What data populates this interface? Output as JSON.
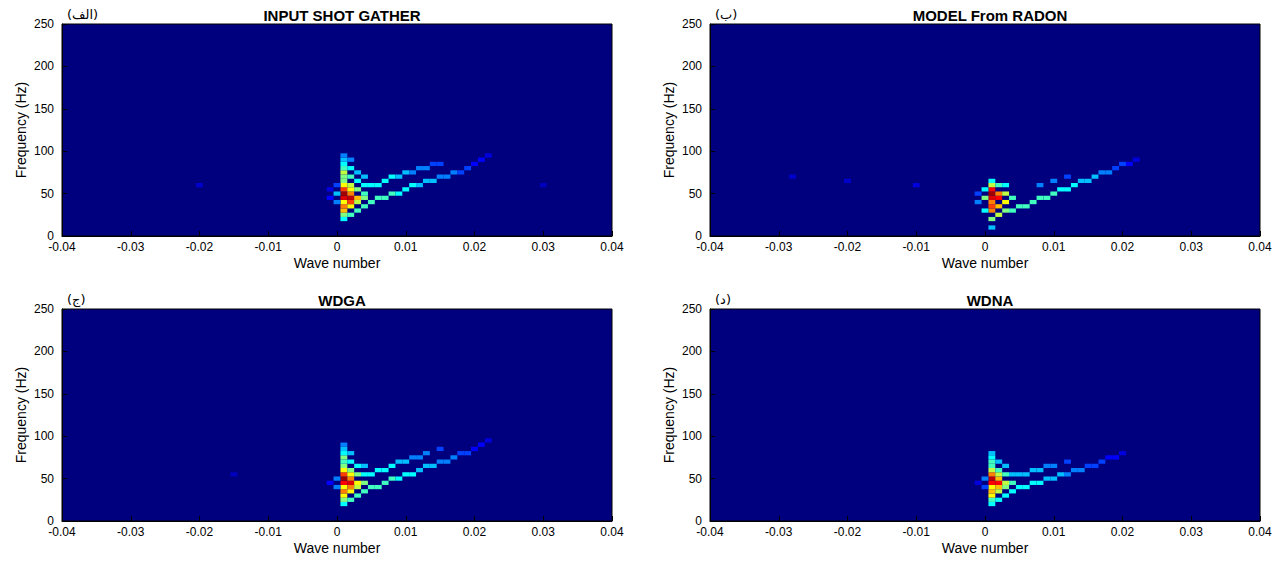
{
  "chart_data": [
    {
      "type": "heatmap",
      "panel_label": "(الف)",
      "title": "INPUT SHOT GATHER",
      "x_label": "Wave number",
      "y_label": "Frequency (Hz)",
      "xlim": [
        -0.04,
        0.04
      ],
      "xticks": [
        -0.04,
        -0.03,
        -0.02,
        -0.01,
        0,
        0.01,
        0.02,
        0.03,
        0.04
      ],
      "ylim": [
        0,
        250
      ],
      "yticks": [
        0,
        50,
        100,
        150,
        200,
        250
      ],
      "cell_size": [
        0.001,
        5
      ],
      "color_range": [
        0,
        1
      ],
      "cells": [
        [
          0.001,
          20,
          0.4
        ],
        [
          0.001,
          25,
          0.5
        ],
        [
          0.001,
          30,
          0.65
        ],
        [
          0.001,
          35,
          0.7
        ],
        [
          0.001,
          40,
          0.6
        ],
        [
          0.001,
          45,
          0.85
        ],
        [
          0.001,
          50,
          0.95
        ],
        [
          0.001,
          55,
          0.75
        ],
        [
          0.001,
          60,
          0.6
        ],
        [
          0.001,
          65,
          0.5
        ],
        [
          0.001,
          70,
          0.5
        ],
        [
          0.001,
          75,
          0.55
        ],
        [
          0.001,
          80,
          0.45
        ],
        [
          0.001,
          85,
          0.4
        ],
        [
          0.001,
          90,
          0.35
        ],
        [
          0.001,
          95,
          0.3
        ],
        [
          0.002,
          25,
          0.45
        ],
        [
          0.002,
          35,
          0.6
        ],
        [
          0.002,
          40,
          0.75
        ],
        [
          0.002,
          45,
          0.9
        ],
        [
          0.002,
          50,
          0.7
        ],
        [
          0.002,
          55,
          0.6
        ],
        [
          0.002,
          60,
          0.55
        ],
        [
          0.002,
          70,
          0.45
        ],
        [
          0.002,
          80,
          0.4
        ],
        [
          0.002,
          90,
          0.3
        ],
        [
          0.003,
          30,
          0.45
        ],
        [
          0.003,
          40,
          0.55
        ],
        [
          0.003,
          45,
          0.65
        ],
        [
          0.003,
          55,
          0.5
        ],
        [
          0.003,
          65,
          0.4
        ],
        [
          0.003,
          75,
          0.35
        ],
        [
          0.004,
          35,
          0.45
        ],
        [
          0.004,
          45,
          0.5
        ],
        [
          0.004,
          50,
          0.45
        ],
        [
          0.004,
          60,
          0.4
        ],
        [
          0.004,
          70,
          0.35
        ],
        [
          0.005,
          40,
          0.45
        ],
        [
          0.005,
          60,
          0.4
        ],
        [
          0.006,
          45,
          0.45
        ],
        [
          0.006,
          60,
          0.4
        ],
        [
          0.007,
          45,
          0.45
        ],
        [
          0.007,
          65,
          0.4
        ],
        [
          0.008,
          50,
          0.45
        ],
        [
          0.008,
          70,
          0.4
        ],
        [
          0.009,
          50,
          0.4
        ],
        [
          0.009,
          70,
          0.35
        ],
        [
          0.01,
          55,
          0.4
        ],
        [
          0.01,
          75,
          0.35
        ],
        [
          0.011,
          60,
          0.4
        ],
        [
          0.011,
          75,
          0.3
        ],
        [
          0.012,
          60,
          0.35
        ],
        [
          0.012,
          80,
          0.3
        ],
        [
          0.013,
          65,
          0.35
        ],
        [
          0.013,
          80,
          0.3
        ],
        [
          0.014,
          65,
          0.35
        ],
        [
          0.014,
          85,
          0.25
        ],
        [
          0.015,
          70,
          0.3
        ],
        [
          0.015,
          85,
          0.25
        ],
        [
          0.016,
          70,
          0.3
        ],
        [
          0.017,
          75,
          0.3
        ],
        [
          0.018,
          75,
          0.25
        ],
        [
          0.019,
          80,
          0.25
        ],
        [
          0.02,
          85,
          0.2
        ],
        [
          0.021,
          90,
          0.2
        ],
        [
          0.022,
          95,
          0.15
        ],
        [
          0,
          40,
          0.3
        ],
        [
          0,
          50,
          0.35
        ],
        [
          0,
          60,
          0.25
        ],
        [
          -0.001,
          45,
          0.2
        ],
        [
          -0.001,
          55,
          0.15
        ],
        [
          -0.02,
          60,
          0.12
        ],
        [
          0.03,
          60,
          0.1
        ]
      ]
    },
    {
      "type": "heatmap",
      "panel_label": "(ب)",
      "title": "MODEL From RADON",
      "x_label": "Wave number",
      "y_label": "Frequency (Hz)",
      "xlim": [
        -0.04,
        0.04
      ],
      "xticks": [
        -0.04,
        -0.03,
        -0.02,
        -0.01,
        0,
        0.01,
        0.02,
        0.03,
        0.04
      ],
      "ylim": [
        0,
        250
      ],
      "yticks": [
        0,
        50,
        100,
        150,
        200,
        250
      ],
      "cell_size": [
        0.001,
        5
      ],
      "color_range": [
        0,
        1
      ],
      "cells": [
        [
          0.001,
          10,
          0.35
        ],
        [
          0.001,
          20,
          0.5
        ],
        [
          0.001,
          30,
          0.7
        ],
        [
          0.001,
          35,
          0.75
        ],
        [
          0.001,
          40,
          0.7
        ],
        [
          0.001,
          45,
          0.85
        ],
        [
          0.001,
          50,
          0.95
        ],
        [
          0.001,
          55,
          0.8
        ],
        [
          0.001,
          60,
          0.55
        ],
        [
          0.001,
          65,
          0.4
        ],
        [
          0.002,
          25,
          0.55
        ],
        [
          0.002,
          35,
          0.65
        ],
        [
          0.002,
          45,
          0.8
        ],
        [
          0.002,
          50,
          0.7
        ],
        [
          0.002,
          60,
          0.45
        ],
        [
          0.003,
          30,
          0.5
        ],
        [
          0.003,
          40,
          0.6
        ],
        [
          0.003,
          50,
          0.55
        ],
        [
          0.003,
          60,
          0.4
        ],
        [
          0,
          30,
          0.4
        ],
        [
          0,
          45,
          0.5
        ],
        [
          0,
          55,
          0.4
        ],
        [
          -0.001,
          40,
          0.3
        ],
        [
          -0.001,
          50,
          0.25
        ],
        [
          0.004,
          30,
          0.45
        ],
        [
          0.004,
          45,
          0.45
        ],
        [
          0.005,
          35,
          0.45
        ],
        [
          0.006,
          35,
          0.45
        ],
        [
          0.007,
          40,
          0.45
        ],
        [
          0.008,
          45,
          0.45
        ],
        [
          0.009,
          45,
          0.45
        ],
        [
          0.01,
          50,
          0.45
        ],
        [
          0.011,
          55,
          0.4
        ],
        [
          0.012,
          55,
          0.4
        ],
        [
          0.013,
          60,
          0.4
        ],
        [
          0.014,
          65,
          0.35
        ],
        [
          0.015,
          65,
          0.35
        ],
        [
          0.016,
          70,
          0.35
        ],
        [
          0.017,
          75,
          0.3
        ],
        [
          0.018,
          75,
          0.3
        ],
        [
          0.019,
          80,
          0.25
        ],
        [
          0.02,
          85,
          0.25
        ],
        [
          0.021,
          85,
          0.2
        ],
        [
          0.022,
          90,
          0.15
        ],
        [
          0.008,
          60,
          0.3
        ],
        [
          0.01,
          65,
          0.3
        ],
        [
          0.012,
          70,
          0.25
        ],
        [
          -0.02,
          65,
          0.12
        ],
        [
          -0.028,
          70,
          0.12
        ],
        [
          -0.01,
          60,
          0.15
        ]
      ]
    },
    {
      "type": "heatmap",
      "panel_label": "(ج)",
      "title": "WDGA",
      "x_label": "Wave number",
      "y_label": "Frequency (Hz)",
      "xlim": [
        -0.04,
        0.04
      ],
      "xticks": [
        -0.04,
        -0.03,
        -0.02,
        -0.01,
        0,
        0.01,
        0.02,
        0.03,
        0.04
      ],
      "ylim": [
        0,
        250
      ],
      "yticks": [
        0,
        50,
        100,
        150,
        200,
        250
      ],
      "cell_size": [
        0.001,
        5
      ],
      "color_range": [
        0,
        1
      ],
      "cells": [
        [
          0.001,
          20,
          0.4
        ],
        [
          0.001,
          25,
          0.5
        ],
        [
          0.001,
          30,
          0.6
        ],
        [
          0.001,
          35,
          0.7
        ],
        [
          0.001,
          40,
          0.6
        ],
        [
          0.001,
          45,
          0.8
        ],
        [
          0.001,
          50,
          0.95
        ],
        [
          0.001,
          55,
          0.75
        ],
        [
          0.001,
          60,
          0.6
        ],
        [
          0.001,
          65,
          0.5
        ],
        [
          0.001,
          70,
          0.45
        ],
        [
          0.001,
          75,
          0.5
        ],
        [
          0.001,
          80,
          0.4
        ],
        [
          0.001,
          85,
          0.35
        ],
        [
          0.001,
          90,
          0.3
        ],
        [
          0.002,
          25,
          0.45
        ],
        [
          0.002,
          35,
          0.6
        ],
        [
          0.002,
          40,
          0.7
        ],
        [
          0.002,
          45,
          0.85
        ],
        [
          0.002,
          50,
          0.7
        ],
        [
          0.002,
          55,
          0.6
        ],
        [
          0.002,
          60,
          0.5
        ],
        [
          0.002,
          70,
          0.4
        ],
        [
          0.002,
          80,
          0.35
        ],
        [
          0.003,
          30,
          0.45
        ],
        [
          0.003,
          40,
          0.55
        ],
        [
          0.003,
          45,
          0.6
        ],
        [
          0.003,
          55,
          0.5
        ],
        [
          0.003,
          65,
          0.4
        ],
        [
          0.004,
          35,
          0.45
        ],
        [
          0.004,
          45,
          0.5
        ],
        [
          0.004,
          55,
          0.4
        ],
        [
          0.004,
          65,
          0.35
        ],
        [
          0.005,
          40,
          0.45
        ],
        [
          0.005,
          55,
          0.4
        ],
        [
          0.006,
          40,
          0.45
        ],
        [
          0.006,
          60,
          0.4
        ],
        [
          0.007,
          45,
          0.45
        ],
        [
          0.007,
          60,
          0.4
        ],
        [
          0.008,
          50,
          0.45
        ],
        [
          0.008,
          65,
          0.4
        ],
        [
          0.009,
          50,
          0.4
        ],
        [
          0.009,
          70,
          0.35
        ],
        [
          0.01,
          55,
          0.4
        ],
        [
          0.01,
          70,
          0.35
        ],
        [
          0.011,
          55,
          0.4
        ],
        [
          0.011,
          75,
          0.3
        ],
        [
          0.012,
          60,
          0.35
        ],
        [
          0.012,
          75,
          0.3
        ],
        [
          0.013,
          65,
          0.35
        ],
        [
          0.013,
          80,
          0.3
        ],
        [
          0.014,
          65,
          0.35
        ],
        [
          0.015,
          70,
          0.3
        ],
        [
          0.015,
          85,
          0.25
        ],
        [
          0.016,
          70,
          0.3
        ],
        [
          0.017,
          75,
          0.3
        ],
        [
          0.018,
          80,
          0.25
        ],
        [
          0.019,
          80,
          0.25
        ],
        [
          0.02,
          85,
          0.2
        ],
        [
          0.021,
          90,
          0.2
        ],
        [
          0.022,
          95,
          0.15
        ],
        [
          0,
          40,
          0.3
        ],
        [
          0,
          50,
          0.3
        ],
        [
          -0.001,
          45,
          0.2
        ],
        [
          -0.015,
          55,
          0.1
        ]
      ]
    },
    {
      "type": "heatmap",
      "panel_label": "(د)",
      "title": "WDNA",
      "x_label": "Wave number",
      "y_label": "Frequency (Hz)",
      "xlim": [
        -0.04,
        0.04
      ],
      "xticks": [
        -0.04,
        -0.03,
        -0.02,
        -0.01,
        0,
        0.01,
        0.02,
        0.03,
        0.04
      ],
      "ylim": [
        0,
        250
      ],
      "yticks": [
        0,
        50,
        100,
        150,
        200,
        250
      ],
      "cell_size": [
        0.001,
        5
      ],
      "color_range": [
        0,
        1
      ],
      "cells": [
        [
          0.001,
          20,
          0.4
        ],
        [
          0.001,
          25,
          0.45
        ],
        [
          0.001,
          30,
          0.6
        ],
        [
          0.001,
          35,
          0.65
        ],
        [
          0.001,
          40,
          0.6
        ],
        [
          0.001,
          45,
          0.8
        ],
        [
          0.001,
          50,
          0.9
        ],
        [
          0.001,
          55,
          0.7
        ],
        [
          0.001,
          60,
          0.55
        ],
        [
          0.001,
          65,
          0.45
        ],
        [
          0.001,
          70,
          0.45
        ],
        [
          0.001,
          75,
          0.4
        ],
        [
          0.001,
          80,
          0.35
        ],
        [
          0.002,
          25,
          0.4
        ],
        [
          0.002,
          35,
          0.55
        ],
        [
          0.002,
          40,
          0.65
        ],
        [
          0.002,
          45,
          0.8
        ],
        [
          0.002,
          50,
          0.65
        ],
        [
          0.002,
          55,
          0.55
        ],
        [
          0.002,
          60,
          0.45
        ],
        [
          0.002,
          70,
          0.35
        ],
        [
          0.003,
          30,
          0.4
        ],
        [
          0.003,
          40,
          0.5
        ],
        [
          0.003,
          45,
          0.55
        ],
        [
          0.003,
          55,
          0.45
        ],
        [
          0.003,
          65,
          0.35
        ],
        [
          0.004,
          35,
          0.4
        ],
        [
          0.004,
          45,
          0.45
        ],
        [
          0.004,
          55,
          0.35
        ],
        [
          0.005,
          40,
          0.4
        ],
        [
          0.005,
          55,
          0.35
        ],
        [
          0.006,
          40,
          0.4
        ],
        [
          0.006,
          55,
          0.35
        ],
        [
          0.007,
          45,
          0.4
        ],
        [
          0.007,
          60,
          0.35
        ],
        [
          0.008,
          45,
          0.4
        ],
        [
          0.008,
          60,
          0.35
        ],
        [
          0.009,
          50,
          0.35
        ],
        [
          0.009,
          65,
          0.3
        ],
        [
          0.01,
          50,
          0.35
        ],
        [
          0.01,
          65,
          0.3
        ],
        [
          0.011,
          55,
          0.35
        ],
        [
          0.012,
          55,
          0.3
        ],
        [
          0.012,
          70,
          0.25
        ],
        [
          0.013,
          60,
          0.3
        ],
        [
          0.014,
          60,
          0.3
        ],
        [
          0.015,
          65,
          0.25
        ],
        [
          0.016,
          65,
          0.25
        ],
        [
          0.017,
          70,
          0.25
        ],
        [
          0.018,
          75,
          0.2
        ],
        [
          0.019,
          75,
          0.2
        ],
        [
          0.02,
          80,
          0.15
        ],
        [
          0,
          40,
          0.25
        ],
        [
          0,
          50,
          0.3
        ],
        [
          -0.001,
          45,
          0.15
        ]
      ]
    }
  ]
}
